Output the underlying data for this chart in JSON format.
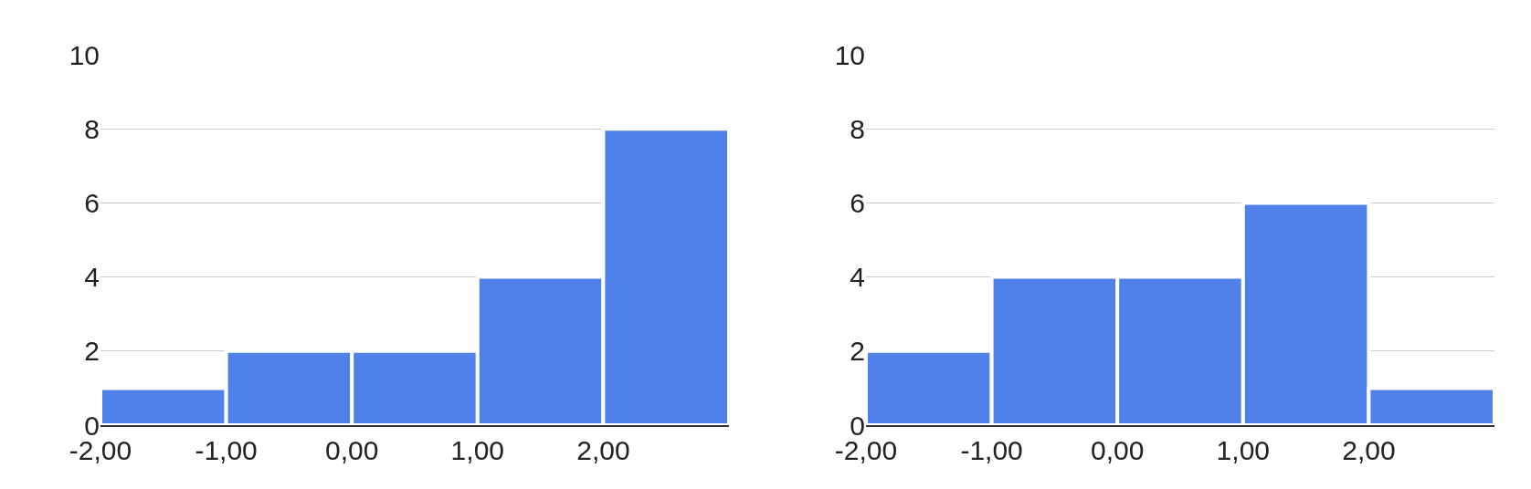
{
  "chart_data": [
    {
      "type": "histogram",
      "bins": [
        -2,
        -1,
        0,
        1,
        2,
        3
      ],
      "values": [
        1,
        2,
        2,
        4,
        8
      ],
      "color": "#4f81e8",
      "xlim": [
        -2,
        3
      ],
      "ylim": [
        0,
        10
      ],
      "xticks": [
        {
          "value": -2,
          "label": "-2,00"
        },
        {
          "value": -1,
          "label": "-1,00"
        },
        {
          "value": 0,
          "label": "0,00"
        },
        {
          "value": 1,
          "label": "1,00"
        },
        {
          "value": 2,
          "label": "2,00"
        }
      ],
      "yticks": [
        0,
        2,
        4,
        6,
        8,
        10
      ],
      "grid": "y"
    },
    {
      "type": "histogram",
      "bins": [
        -2,
        -1,
        0,
        1,
        2,
        3
      ],
      "values": [
        2,
        4,
        4,
        6,
        1
      ],
      "color": "#4f81e8",
      "xlim": [
        -2,
        3
      ],
      "ylim": [
        0,
        10
      ],
      "xticks": [
        {
          "value": -2,
          "label": "-2,00"
        },
        {
          "value": -1,
          "label": "-1,00"
        },
        {
          "value": 0,
          "label": "0,00"
        },
        {
          "value": 1,
          "label": "1,00"
        },
        {
          "value": 2,
          "label": "2,00"
        }
      ],
      "yticks": [
        0,
        2,
        4,
        6,
        8,
        10
      ],
      "grid": "y"
    }
  ]
}
